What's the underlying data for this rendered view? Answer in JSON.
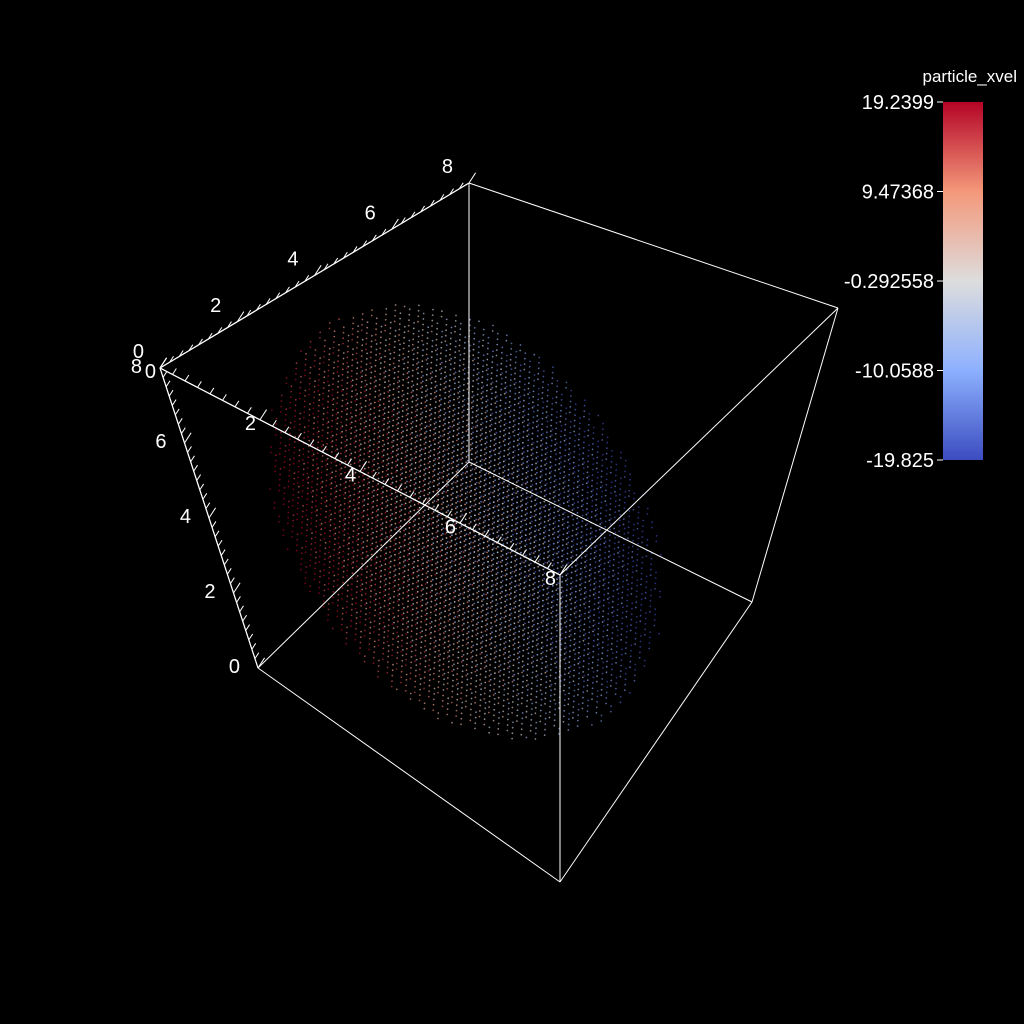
{
  "chart_data": {
    "type": "scatter",
    "subtype": "3d-particle-point-cloud",
    "colormap": "coolwarm",
    "background": "#000000",
    "axes": {
      "x": {
        "range": [
          0,
          8
        ],
        "ticks": [
          "0",
          "2",
          "4",
          "6",
          "8"
        ]
      },
      "y": {
        "range": [
          0,
          8
        ],
        "ticks": [
          "0",
          "2",
          "4",
          "6",
          "8"
        ]
      },
      "z": {
        "range": [
          0,
          8
        ],
        "ticks": [
          "0",
          "2",
          "4",
          "6",
          "8"
        ]
      }
    },
    "colorbar": {
      "title": "particle_xvel",
      "min": -19.825,
      "max": 19.2399,
      "labels": [
        "19.2399",
        "9.47368",
        "-0.292558",
        "-10.0588",
        "-19.825"
      ],
      "colors": {
        "low": "#3b4cc0",
        "mid": "#dddddd",
        "high": "#b40426"
      }
    },
    "grid": false,
    "legend": "right"
  }
}
